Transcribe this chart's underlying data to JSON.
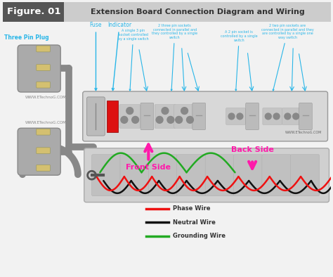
{
  "bg_color": "#f2f2f2",
  "header_bg": "#555555",
  "header_fig_text": "Figure. 01",
  "header_title": "Extension Board Connection Diagram and Wiring",
  "header_fig_color": "#ffffff",
  "header_title_color": "#333333",
  "header_title_bg": "#cccccc",
  "watermark1": "WWW.ETechnoG.COM",
  "watermark2": "WWW.ETechnoG.COM",
  "watermark3": "WWW.ETechnoG.COM",
  "label_three_pin": "Three Pin Plug",
  "label_fuse": "Fuse",
  "label_indicator": "Indicator",
  "label_front": "Front Side",
  "label_back": "Back Side",
  "label_phase": "Phase Wire",
  "label_neutral": "Neutral Wire",
  "label_ground": "Grounding Wire",
  "cyan_color": "#29b6e8",
  "magenta_color": "#ff1aaa",
  "red_color": "#ee1111",
  "black_color": "#111111",
  "green_color": "#22aa22",
  "plug_color": "#aaaaaa",
  "pin_color": "#d4c070",
  "red_indicator": "#dd1111",
  "ann1": "A single 3 pin\nsocket controlled\nby a single switch",
  "ann2": "2 three pin sockets\nconnected in parallel and\nthey controlled by a single\nswitch",
  "ann3": "A 2 pin socket is\ncontrolled by a single\nswitch",
  "ann4": "2 two pin sockets are\nconnected in parallel and they\nare controlled by a single one\nway switch"
}
